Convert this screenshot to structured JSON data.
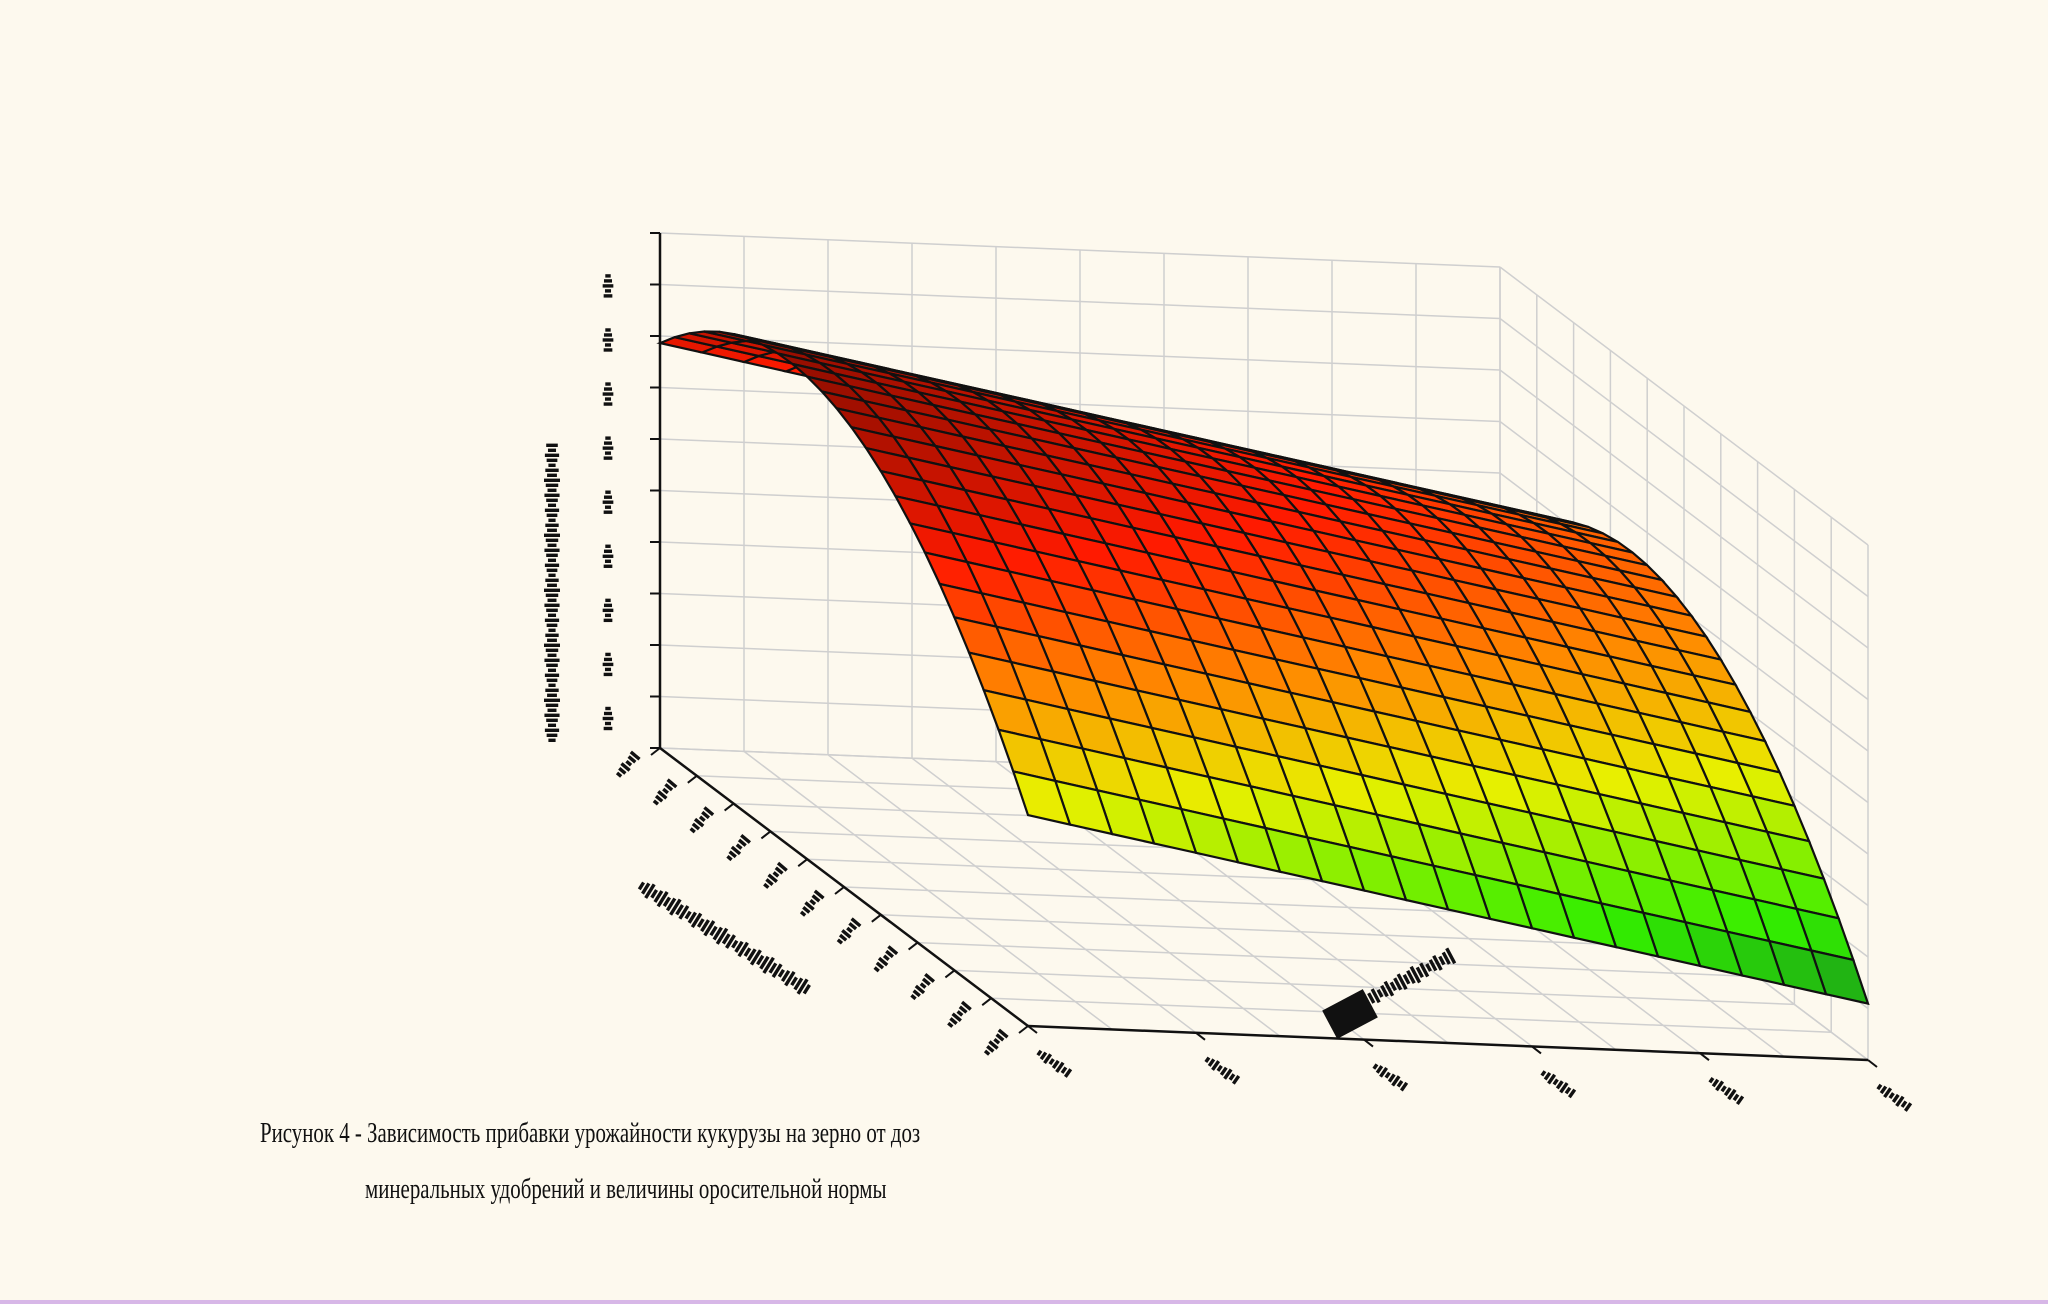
{
  "chart_data": {
    "type": "surface3d",
    "title": "",
    "caption": {
      "line1": "Рисунок 4  - Зависимость прибавки урожайности кукурузы на зерно от доз",
      "line2": "минеральных удобрений и величины оросительной нормы"
    },
    "colors": {
      "low": "#0a6e2a",
      "mid_low": "#33ee00",
      "mid": "#e8f000",
      "mid_high": "#ff8800",
      "high": "#ff1a00",
      "top": "#8e0d00",
      "mesh_line": "#111111",
      "background": "#fdf9ee",
      "grid": "#cfcfcf",
      "axis": "#111111"
    },
    "grid": true,
    "mesh_rows": 25,
    "mesh_cols": 20,
    "z_ticks": 9,
    "x_ticks": 11,
    "y_ticks": 6
  }
}
